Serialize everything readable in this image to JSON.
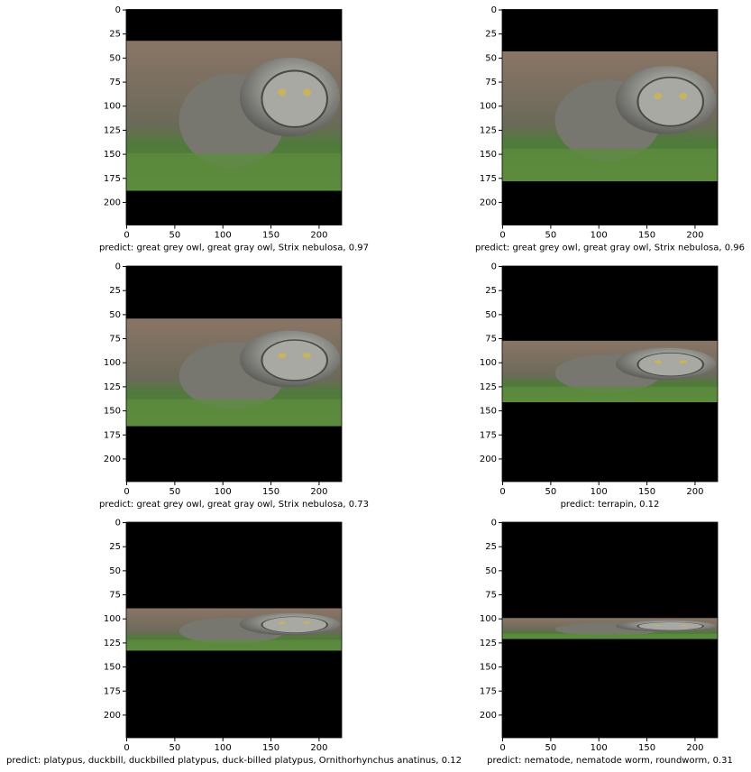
{
  "chart_data": [
    {
      "type": "image",
      "xlabel": "predict: great grey owl, great gray owl, Strix nebulosa, 0.97",
      "xlim": [
        -0.5,
        223.5
      ],
      "ylim": [
        223.5,
        -0.5
      ],
      "xticks": [
        0,
        50,
        100,
        150,
        200
      ],
      "yticks": [
        0,
        25,
        50,
        75,
        100,
        125,
        150,
        175,
        200
      ],
      "image_rows": [
        32,
        188
      ]
    },
    {
      "type": "image",
      "xlabel": "predict: great grey owl, great gray owl, Strix nebulosa, 0.96",
      "xlim": [
        -0.5,
        223.5
      ],
      "ylim": [
        223.5,
        -0.5
      ],
      "xticks": [
        0,
        50,
        100,
        150,
        200
      ],
      "yticks": [
        0,
        25,
        50,
        75,
        100,
        125,
        150,
        175,
        200
      ],
      "image_rows": [
        43,
        178
      ]
    },
    {
      "type": "image",
      "xlabel": "predict: great grey owl, great gray owl, Strix nebulosa, 0.73",
      "xlim": [
        -0.5,
        223.5
      ],
      "ylim": [
        223.5,
        -0.5
      ],
      "xticks": [
        0,
        50,
        100,
        150,
        200
      ],
      "yticks": [
        0,
        25,
        50,
        75,
        100,
        125,
        150,
        175,
        200
      ],
      "image_rows": [
        54,
        166
      ]
    },
    {
      "type": "image",
      "xlabel": "predict: terrapin, 0.12",
      "xlim": [
        -0.5,
        223.5
      ],
      "ylim": [
        223.5,
        -0.5
      ],
      "xticks": [
        0,
        50,
        100,
        150,
        200
      ],
      "yticks": [
        0,
        25,
        50,
        75,
        100,
        125,
        150,
        175,
        200
      ],
      "image_rows": [
        77,
        141
      ]
    },
    {
      "type": "image",
      "xlabel": "predict: platypus, duckbill, duckbilled platypus, duck-billed platypus, Ornithorhynchus anatinus, 0.12",
      "xlim": [
        -0.5,
        223.5
      ],
      "ylim": [
        223.5,
        -0.5
      ],
      "xticks": [
        0,
        50,
        100,
        150,
        200
      ],
      "yticks": [
        0,
        25,
        50,
        75,
        100,
        125,
        150,
        175,
        200
      ],
      "image_rows": [
        89,
        133
      ]
    },
    {
      "type": "image",
      "xlabel": "predict: nematode, nematode worm, roundworm, 0.31",
      "xlim": [
        -0.5,
        223.5
      ],
      "ylim": [
        223.5,
        -0.5
      ],
      "xticks": [
        0,
        50,
        100,
        150,
        200
      ],
      "yticks": [
        0,
        25,
        50,
        75,
        100,
        125,
        150,
        175,
        200
      ],
      "image_rows": [
        99,
        121
      ]
    }
  ]
}
